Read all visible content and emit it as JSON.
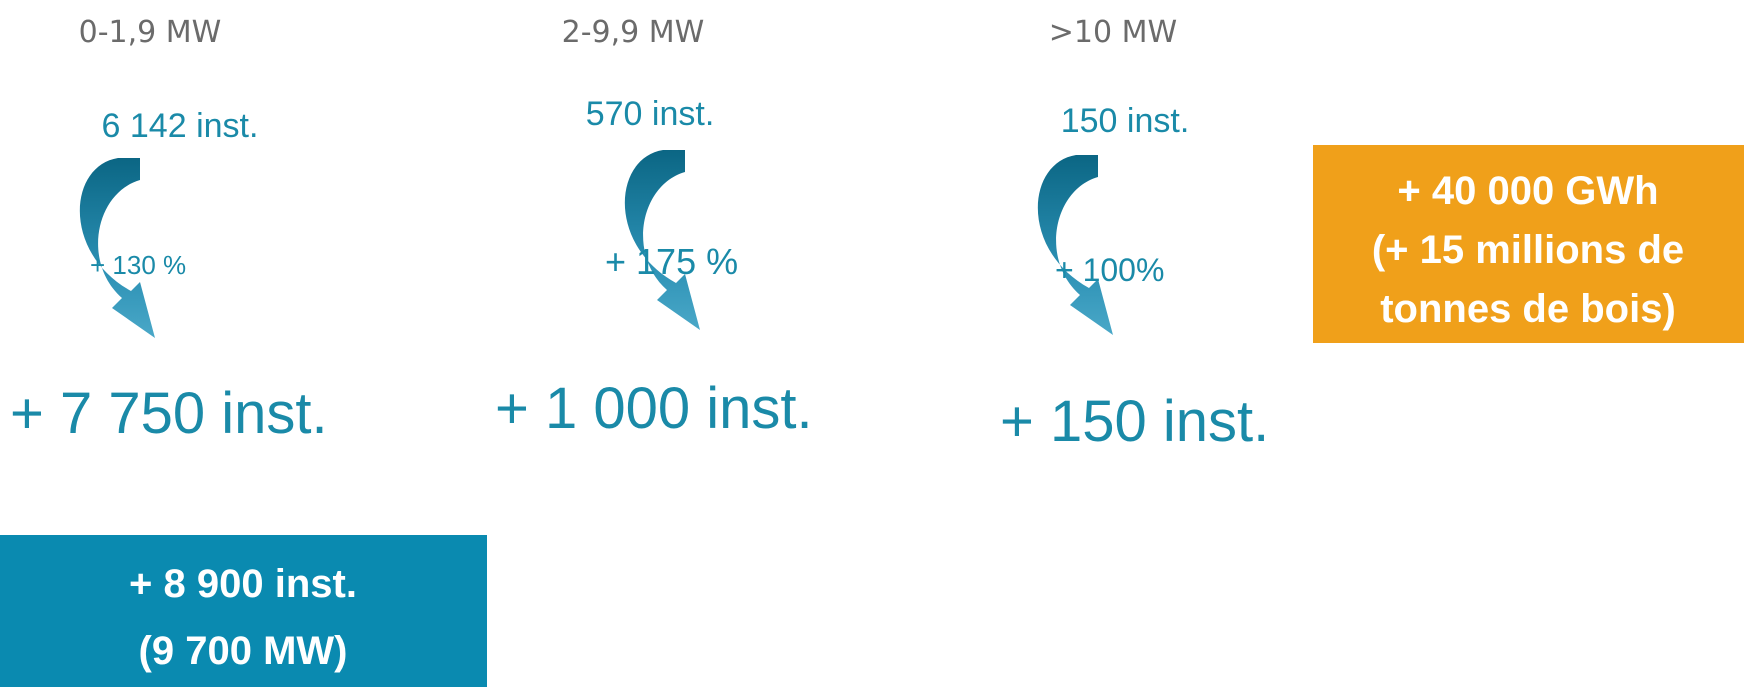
{
  "columns": [
    {
      "header": "0-1,9 MW",
      "current": "6 142 inst.",
      "growth": "+ 130 %",
      "added": "+ 7 750 inst."
    },
    {
      "header": "2-9,9 MW",
      "current": "570 inst.",
      "growth": "+ 175 %",
      "added": "+ 1 000 inst."
    },
    {
      "header": ">10 MW",
      "current": "150 inst.",
      "growth": "+ 100%",
      "added": "+ 150 inst."
    }
  ],
  "energy_box": {
    "lines": [
      "+ 40 000 GWh",
      "(+ 15 millions de",
      "tonnes de bois)"
    ]
  },
  "total_box": {
    "lines": [
      "+ 8 900 inst.",
      "(9 700 MW)"
    ]
  }
}
